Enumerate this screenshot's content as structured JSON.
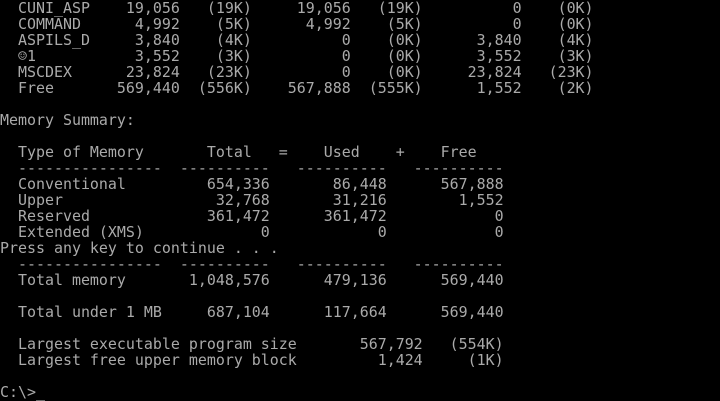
{
  "colors": {
    "foreground": "#aaaaaa",
    "background": "#000000"
  },
  "lines": [
    "  CUNI_ASP    19,056   (19K)     19,056   (19K)          0    (0K)",
    "  COMMAND      4,992    (5K)      4,992    (5K)          0    (0K)",
    "  ASPILS_D     3,840    (4K)          0    (0K)      3,840    (4K)",
    "  ☺1           3,552    (3K)          0    (0K)      3,552    (3K)",
    "  MSCDEX      23,824   (23K)          0    (0K)     23,824   (23K)",
    "  Free       569,440  (556K)    567,888  (555K)      1,552    (2K)",
    "",
    "Memory Summary:",
    "",
    "  Type of Memory       Total   =    Used    +    Free",
    "  ----------------  ----------   ----------   ----------",
    "  Conventional         654,336       86,448      567,888",
    "  Upper                 32,768       31,216        1,552",
    "  Reserved             361,472      361,472            0",
    "  Extended (XMS)             0            0            0",
    "Press any key to continue . . .",
    "  ----------------  ----------   ----------   ----------",
    "  Total memory       1,048,576      479,136      569,440",
    "",
    "  Total under 1 MB     687,104      117,664      569,440",
    "",
    "  Largest executable program size       567,792   (554K)",
    "  Largest free upper memory block         1,424     (1K)",
    ""
  ],
  "prompt": {
    "text": "C:\\>",
    "cursor": "_"
  }
}
